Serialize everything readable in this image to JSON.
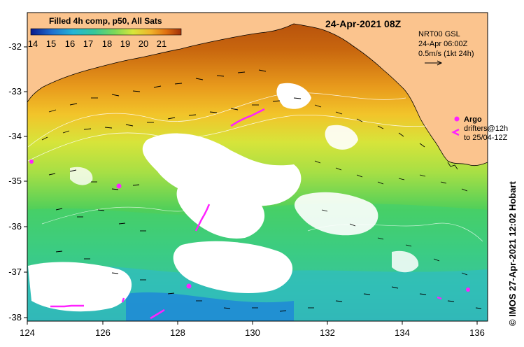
{
  "title": "24-Apr-2021 08Z",
  "legend_title": "Filled 4h comp, p50, All Sats",
  "colorbar": {
    "ticks": [
      "14",
      "15",
      "16",
      "17",
      "18",
      "19",
      "20",
      "21"
    ],
    "stops": [
      "#0a1a8c",
      "#1f6fd0",
      "#23b5d6",
      "#35c79a",
      "#7ed957",
      "#d8e63a",
      "#f0b22a",
      "#e07010",
      "#a0300a"
    ]
  },
  "info": {
    "line1": "NRT00 GSL",
    "line2": "24-Apr 06:00Z",
    "line3": "0.5m/s (1kt 24h)"
  },
  "argo": {
    "label": "Argo",
    "drifters_line1": "drifters@12h",
    "drifters_line2": "to 25/04-12Z"
  },
  "credit": "© IMOS 27-Apr-2021 12:02 Hobart",
  "axes": {
    "x_ticks": [
      "124",
      "126",
      "128",
      "130",
      "132",
      "134",
      "136"
    ],
    "y_ticks": [
      "-32",
      "-33",
      "-34",
      "-35",
      "-36",
      "-37",
      "-38"
    ]
  },
  "colors": {
    "land": "#fbc48e",
    "argo": "#ff22ff"
  }
}
